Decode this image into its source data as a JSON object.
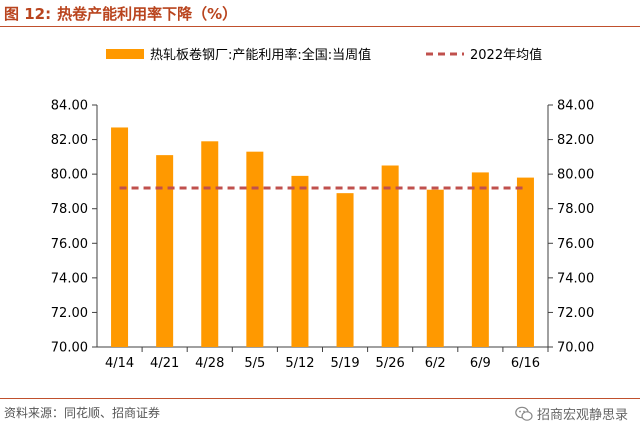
{
  "figure": {
    "label": "图 12:",
    "title": "热卷产能利用率下降（%）",
    "source": "资料来源：同花顺、招商证券",
    "brand": "招商宏观静思录"
  },
  "colors": {
    "title": "#b9441e",
    "bar": "#FF9900",
    "avg_line": "#C0504D",
    "axis": "#404040"
  },
  "icons": {
    "brand_icon": "wechat-icon"
  },
  "chart_data": {
    "type": "bar",
    "title": "",
    "xlabel": "",
    "ylabel": "",
    "categories": [
      "4/14",
      "4/21",
      "4/28",
      "5/5",
      "5/12",
      "5/19",
      "5/26",
      "6/2",
      "6/9",
      "6/16"
    ],
    "series": [
      {
        "name": "热轧板卷钢厂:产能利用率:全国:当周值",
        "type": "bar",
        "values": [
          82.7,
          81.1,
          81.9,
          81.3,
          79.9,
          78.9,
          80.5,
          79.1,
          80.1,
          79.8
        ]
      },
      {
        "name": "2022年均值",
        "type": "line",
        "style": "dashed",
        "values": [
          79.2,
          79.2,
          79.2,
          79.2,
          79.2,
          79.2,
          79.2,
          79.2,
          79.2,
          79.2
        ]
      }
    ],
    "ylim": [
      70,
      84
    ],
    "yticks": [
      "70.00",
      "72.00",
      "74.00",
      "76.00",
      "78.00",
      "80.00",
      "82.00",
      "84.00"
    ],
    "ytick_values": [
      70,
      72,
      74,
      76,
      78,
      80,
      82,
      84
    ],
    "secondary_yticks": [
      "70.00",
      "72.00",
      "74.00",
      "76.00",
      "78.00",
      "80.00",
      "82.00",
      "84.00"
    ],
    "grid": false,
    "legend_position": "top"
  }
}
